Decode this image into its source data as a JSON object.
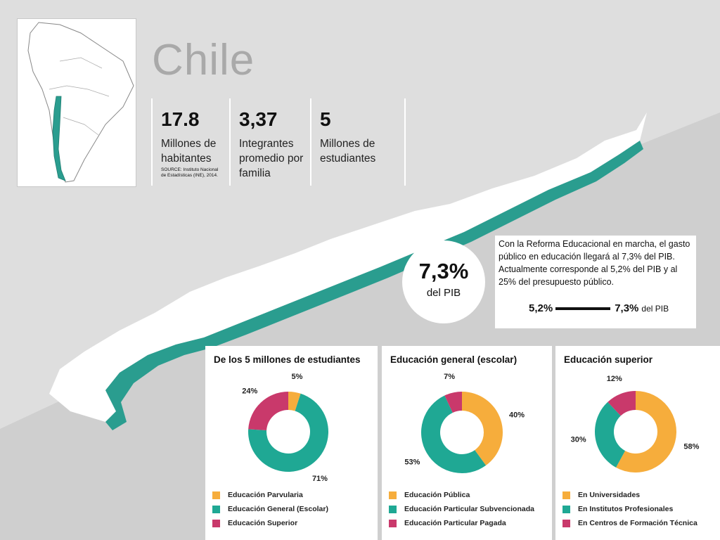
{
  "header": {
    "title": "Chile"
  },
  "stats": [
    {
      "value": "17.8",
      "label": "Millones de\nhabitantes",
      "source": "SOURCE: Instituto Nacional\nde Estadísticas (INE), 2014."
    },
    {
      "value": "3,37",
      "label": "Integrantes\npromedio por\nfamilia"
    },
    {
      "value": "5",
      "label": "Millones de\nestudiantes"
    }
  ],
  "gdp_badge": {
    "value": "7,3%",
    "label": "del PIB"
  },
  "note": {
    "text": "Con la Reforma Educacional en marcha, el gasto público en educación llegará al 7,3% del PIB. Actualmente corresponde al 5,2% del PIB y al 25% del presupuesto público.",
    "from": "5,2%",
    "to": "7,3%",
    "suffix": "del PIB"
  },
  "colors": {
    "orange": "#f6ad3c",
    "teal": "#1fa894",
    "crimson": "#c9396b",
    "map_teal": "#2a9d8f"
  },
  "chart_data": [
    {
      "type": "pie",
      "title": "De los 5 millones de estudiantes",
      "categories": [
        "Educación Parvularia",
        "Educación General (Escolar)",
        "Educación Superior"
      ],
      "values": [
        5,
        71,
        24
      ],
      "labels": [
        "5%",
        "71%",
        "24%"
      ],
      "colors": [
        "#f6ad3c",
        "#1fa894",
        "#c9396b"
      ],
      "legend": "bottom"
    },
    {
      "type": "pie",
      "title": "Educación general (escolar)",
      "categories": [
        "Educación Pública",
        "Educación Particular Subvencionada",
        "Educación Particular Pagada"
      ],
      "values": [
        40,
        53,
        7
      ],
      "labels": [
        "40%",
        "53%",
        "7%"
      ],
      "colors": [
        "#f6ad3c",
        "#1fa894",
        "#c9396b"
      ],
      "legend": "bottom"
    },
    {
      "type": "pie",
      "title": "Educación superior",
      "categories": [
        "En Universidades",
        "En Institutos Profesionales",
        "En Centros de Formación Técnica"
      ],
      "values": [
        58,
        30,
        12
      ],
      "labels": [
        "58%",
        "30%",
        "12%"
      ],
      "colors": [
        "#f6ad3c",
        "#1fa894",
        "#c9396b"
      ],
      "legend": "bottom"
    }
  ]
}
